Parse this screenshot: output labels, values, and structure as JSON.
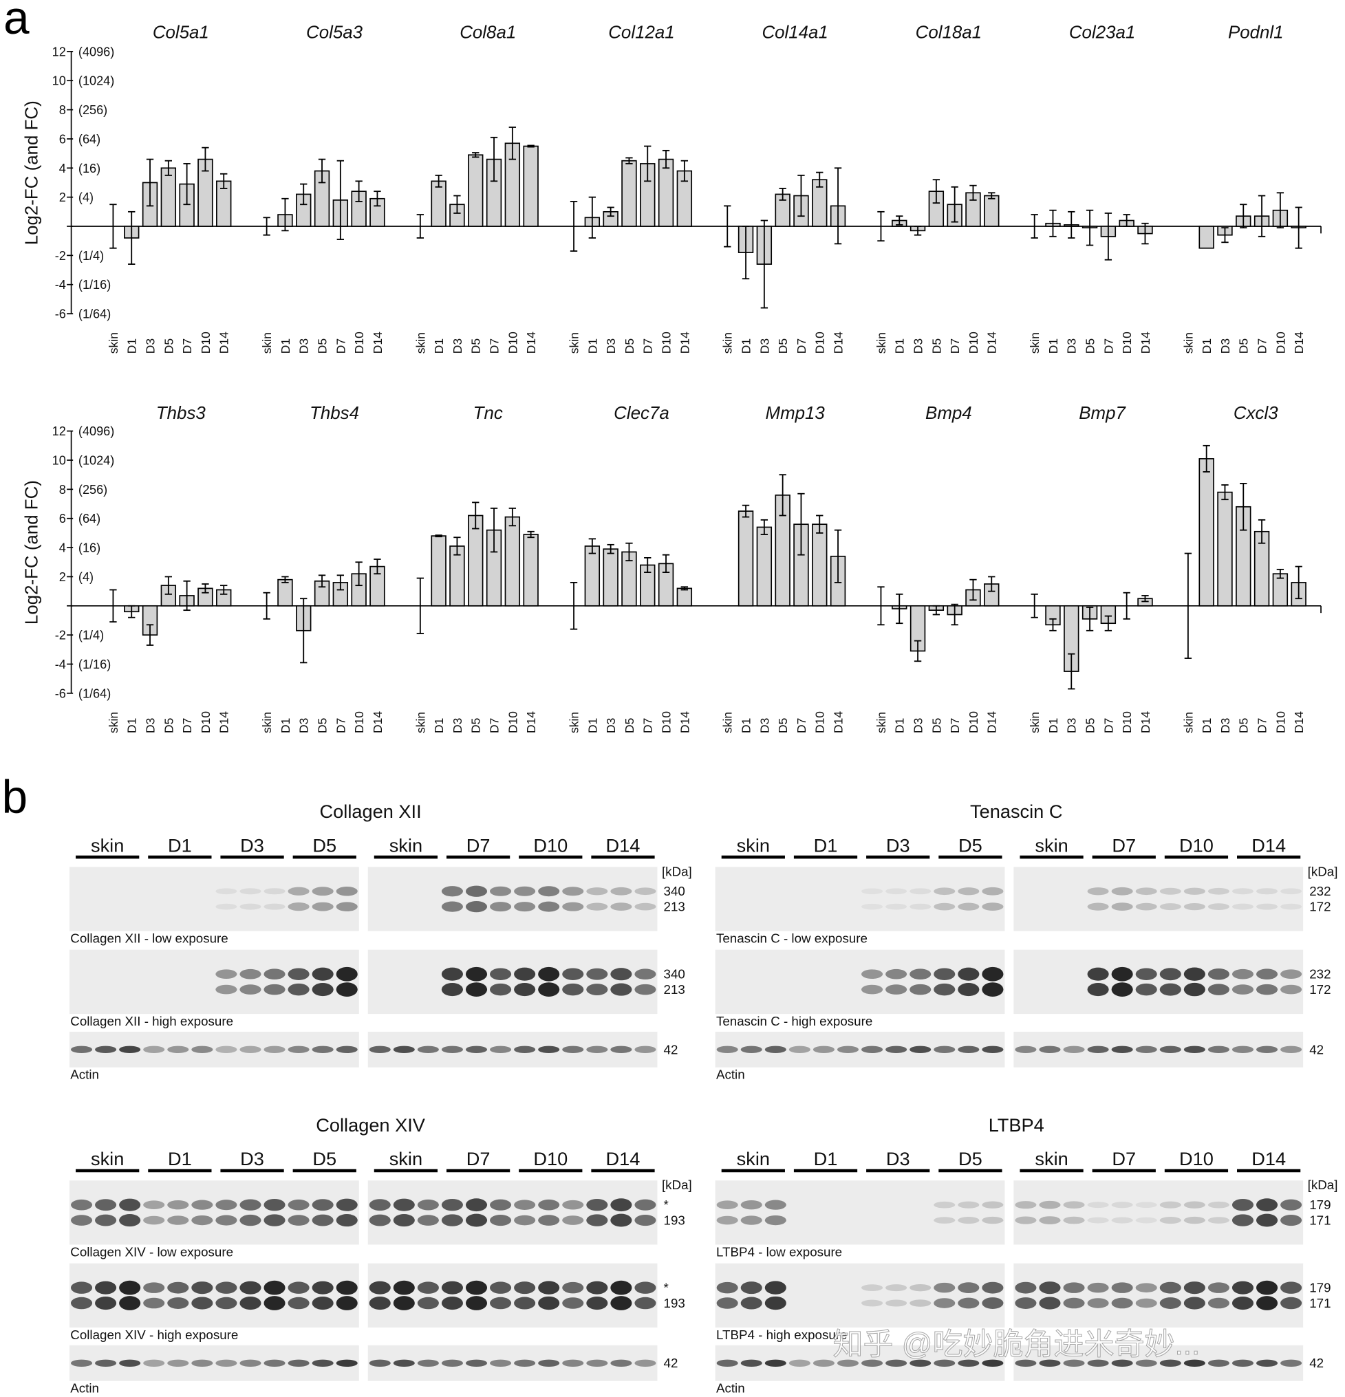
{
  "panel_a": {
    "label": "a",
    "ylabel": "Log2-FC (and FC)",
    "yticks": [
      {
        "value": 12,
        "text": "12",
        "fold": "(4096)"
      },
      {
        "value": 10,
        "text": "10",
        "fold": "(1024)"
      },
      {
        "value": 8,
        "text": "8",
        "fold": "(256)"
      },
      {
        "value": 6,
        "text": "6",
        "fold": "(64)"
      },
      {
        "value": 4,
        "text": "4",
        "fold": "(16)"
      },
      {
        "value": 2,
        "text": "2",
        "fold": "(4)"
      },
      {
        "value": 0,
        "text": "",
        "fold": ""
      },
      {
        "value": -2,
        "text": "-2",
        "fold": "(1/4)"
      },
      {
        "value": -4,
        "text": "-4",
        "fold": "(1/16)"
      },
      {
        "value": -6,
        "text": "-6",
        "fold": "(1/64)"
      }
    ],
    "bar_color": "#d3d3d3"
  },
  "chart_data": [
    {
      "type": "bar",
      "title": "Col5a1",
      "categories": [
        "skin",
        "D1",
        "D3",
        "D5",
        "D7",
        "D10",
        "D14"
      ],
      "values": [
        0,
        -0.8,
        3.0,
        4.0,
        2.9,
        4.6,
        3.1
      ],
      "errors": [
        1.5,
        1.8,
        1.6,
        0.5,
        1.4,
        0.8,
        0.5
      ],
      "ylim": [
        -6,
        12
      ]
    },
    {
      "type": "bar",
      "title": "Col5a3",
      "categories": [
        "skin",
        "D1",
        "D3",
        "D5",
        "D7",
        "D10",
        "D14"
      ],
      "values": [
        0,
        0.8,
        2.2,
        3.8,
        1.8,
        2.4,
        1.9
      ],
      "errors": [
        0.6,
        1.1,
        0.7,
        0.8,
        2.7,
        0.7,
        0.5
      ],
      "ylim": [
        -6,
        12
      ]
    },
    {
      "type": "bar",
      "title": "Col8a1",
      "categories": [
        "skin",
        "D1",
        "D3",
        "D5",
        "D7",
        "D10",
        "D14"
      ],
      "values": [
        0,
        3.1,
        1.5,
        4.9,
        4.6,
        5.7,
        5.5
      ],
      "errors": [
        0.8,
        0.4,
        0.6,
        0.15,
        1.5,
        1.1,
        0.05
      ],
      "ylim": [
        -6,
        12
      ]
    },
    {
      "type": "bar",
      "title": "Col12a1",
      "categories": [
        "skin",
        "D1",
        "D3",
        "D5",
        "D7",
        "D10",
        "D14"
      ],
      "values": [
        0,
        0.6,
        1.0,
        4.5,
        4.3,
        4.6,
        3.8
      ],
      "errors": [
        1.7,
        1.4,
        0.3,
        0.2,
        1.2,
        0.6,
        0.7
      ],
      "ylim": [
        -6,
        12
      ]
    },
    {
      "type": "bar",
      "title": "Col14a1",
      "categories": [
        "skin",
        "D1",
        "D3",
        "D5",
        "D7",
        "D10",
        "D14"
      ],
      "values": [
        0,
        -1.8,
        -2.6,
        2.2,
        2.1,
        3.2,
        1.4
      ],
      "errors": [
        1.4,
        1.8,
        3.0,
        0.4,
        1.4,
        0.5,
        2.6
      ],
      "ylim": [
        -6,
        12
      ]
    },
    {
      "type": "bar",
      "title": "Col18a1",
      "categories": [
        "skin",
        "D1",
        "D3",
        "D5",
        "D7",
        "D10",
        "D14"
      ],
      "values": [
        0,
        0.4,
        -0.3,
        2.4,
        1.5,
        2.3,
        2.1
      ],
      "errors": [
        1.0,
        0.3,
        0.3,
        0.8,
        1.2,
        0.5,
        0.2
      ],
      "ylim": [
        -6,
        12
      ]
    },
    {
      "type": "bar",
      "title": "Col23a1",
      "categories": [
        "skin",
        "D1",
        "D3",
        "D5",
        "D7",
        "D10",
        "D14"
      ],
      "values": [
        0,
        0.2,
        0.1,
        -0.1,
        -0.7,
        0.4,
        -0.5
      ],
      "errors": [
        0.8,
        0.9,
        0.9,
        1.2,
        1.6,
        0.4,
        0.7
      ],
      "ylim": [
        -6,
        12
      ]
    },
    {
      "type": "bar",
      "title": "Podnl1",
      "categories": [
        "skin",
        "D1",
        "D3",
        "D5",
        "D7",
        "D10",
        "D14"
      ],
      "values": [
        0,
        -1.5,
        -0.6,
        0.7,
        0.7,
        1.1,
        -0.1
      ],
      "errors": [
        0,
        0,
        0.5,
        0.8,
        1.4,
        1.2,
        1.4
      ],
      "ylim": [
        -6,
        12
      ]
    },
    {
      "type": "bar",
      "title": "Thbs3",
      "categories": [
        "skin",
        "D1",
        "D3",
        "D5",
        "D7",
        "D10",
        "D14"
      ],
      "values": [
        0,
        -0.4,
        -2.0,
        1.4,
        0.7,
        1.2,
        1.1
      ],
      "errors": [
        1.1,
        0.4,
        0.7,
        0.6,
        1.0,
        0.3,
        0.3
      ],
      "ylim": [
        -6,
        12
      ]
    },
    {
      "type": "bar",
      "title": "Thbs4",
      "categories": [
        "skin",
        "D1",
        "D3",
        "D5",
        "D7",
        "D10",
        "D14"
      ],
      "values": [
        0,
        1.8,
        -1.7,
        1.7,
        1.6,
        2.2,
        2.7
      ],
      "errors": [
        0.9,
        0.2,
        2.2,
        0.4,
        0.5,
        0.8,
        0.5
      ],
      "ylim": [
        -6,
        12
      ]
    },
    {
      "type": "bar",
      "title": "Tnc",
      "categories": [
        "skin",
        "D1",
        "D3",
        "D5",
        "D7",
        "D10",
        "D14"
      ],
      "values": [
        0,
        4.8,
        4.1,
        6.2,
        5.2,
        6.1,
        4.9
      ],
      "errors": [
        1.9,
        0.05,
        0.6,
        0.9,
        1.5,
        0.6,
        0.2
      ],
      "ylim": [
        -6,
        12
      ]
    },
    {
      "type": "bar",
      "title": "Clec7a",
      "categories": [
        "skin",
        "D1",
        "D3",
        "D5",
        "D7",
        "D10",
        "D14"
      ],
      "values": [
        0,
        4.1,
        3.9,
        3.7,
        2.8,
        2.9,
        1.2
      ],
      "errors": [
        1.6,
        0.5,
        0.3,
        0.6,
        0.5,
        0.6,
        0.1
      ],
      "ylim": [
        -6,
        12
      ]
    },
    {
      "type": "bar",
      "title": "Mmp13",
      "categories": [
        "skin",
        "D1",
        "D3",
        "D5",
        "D7",
        "D10",
        "D14"
      ],
      "values": [
        0,
        6.5,
        5.4,
        7.6,
        5.6,
        5.6,
        3.4
      ],
      "errors": [
        0,
        0.4,
        0.5,
        1.4,
        2.1,
        0.6,
        1.8
      ],
      "ylim": [
        -6,
        12
      ]
    },
    {
      "type": "bar",
      "title": "Bmp4",
      "categories": [
        "skin",
        "D1",
        "D3",
        "D5",
        "D7",
        "D10",
        "D14"
      ],
      "values": [
        0,
        -0.2,
        -3.1,
        -0.3,
        -0.6,
        1.1,
        1.5
      ],
      "errors": [
        1.3,
        1.0,
        0.7,
        0.3,
        0.7,
        0.7,
        0.5
      ],
      "ylim": [
        -6,
        12
      ]
    },
    {
      "type": "bar",
      "title": "Bmp7",
      "categories": [
        "skin",
        "D1",
        "D3",
        "D5",
        "D7",
        "D10",
        "D14"
      ],
      "values": [
        0,
        -1.3,
        -4.5,
        -0.9,
        -1.2,
        0,
        0.5
      ],
      "errors": [
        0.8,
        0.4,
        1.2,
        0.8,
        0.5,
        0.9,
        0.2
      ],
      "ylim": [
        -6,
        12
      ]
    },
    {
      "type": "bar",
      "title": "Cxcl3",
      "categories": [
        "skin",
        "D1",
        "D3",
        "D5",
        "D7",
        "D10",
        "D14"
      ],
      "values": [
        0,
        10.1,
        7.8,
        6.8,
        5.1,
        2.2,
        1.6
      ],
      "errors": [
        3.6,
        0.9,
        0.5,
        1.6,
        0.8,
        0.3,
        1.1
      ],
      "ylim": [
        -6,
        12
      ]
    }
  ],
  "panel_b": {
    "label": "b",
    "blots": [
      {
        "title": "Collagen XII",
        "lanes": [
          "skin",
          "D1",
          "D3",
          "D5",
          "skin",
          "D7",
          "D10",
          "D14"
        ],
        "strips": [
          {
            "caption": "Collagen XII - low exposure",
            "kda_header": "[kDa]",
            "markers": [
              "340",
              "213"
            ]
          },
          {
            "caption": "Collagen XII - high exposure",
            "kda_header": "",
            "markers": [
              "340",
              "213"
            ]
          },
          {
            "caption": "Actin",
            "kda_header": "",
            "markers": [
              "42"
            ]
          }
        ]
      },
      {
        "title": "Tenascin C",
        "lanes": [
          "skin",
          "D1",
          "D3",
          "D5",
          "skin",
          "D7",
          "D10",
          "D14"
        ],
        "strips": [
          {
            "caption": "Tenascin C - low exposure",
            "kda_header": "[kDa]",
            "markers": [
              "232",
              "172"
            ]
          },
          {
            "caption": "Tenascin C - high exposure",
            "kda_header": "",
            "markers": [
              "232",
              "172"
            ]
          },
          {
            "caption": "Actin",
            "kda_header": "",
            "markers": [
              "42"
            ]
          }
        ]
      },
      {
        "title": "Collagen XIV",
        "lanes": [
          "skin",
          "D1",
          "D3",
          "D5",
          "skin",
          "D7",
          "D10",
          "D14"
        ],
        "strips": [
          {
            "caption": "Collagen XIV - low exposure",
            "kda_header": "[kDa]",
            "markers": [
              "*",
              "193"
            ]
          },
          {
            "caption": "Collagen XIV - high exposure",
            "kda_header": "",
            "markers": [
              "*",
              "193"
            ]
          },
          {
            "caption": "Actin",
            "kda_header": "",
            "markers": [
              "42"
            ]
          }
        ]
      },
      {
        "title": "LTBP4",
        "lanes": [
          "skin",
          "D1",
          "D3",
          "D5",
          "skin",
          "D7",
          "D10",
          "D14"
        ],
        "strips": [
          {
            "caption": "LTBP4 - low exposure",
            "kda_header": "[kDa]",
            "markers": [
              "179",
              "171"
            ]
          },
          {
            "caption": "LTBP4 - high exposure",
            "kda_header": "",
            "markers": [
              "179",
              "171"
            ]
          },
          {
            "caption": "Actin",
            "kda_header": "",
            "markers": [
              "42"
            ]
          }
        ]
      }
    ]
  },
  "watermark": "知乎 @吃妙脆角进米奇妙..."
}
